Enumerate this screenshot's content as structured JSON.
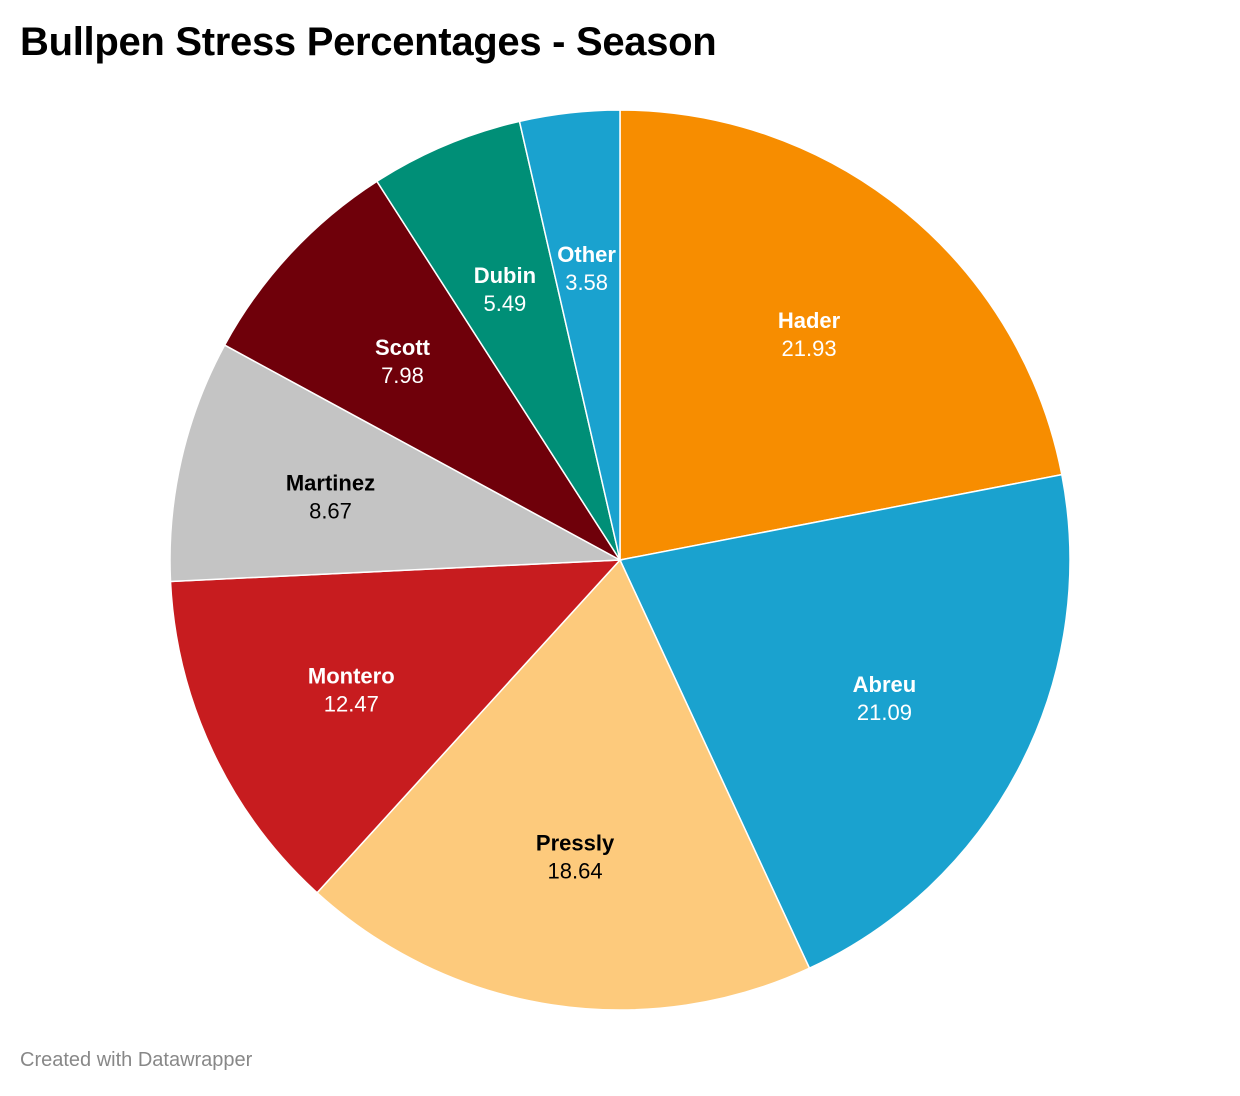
{
  "header": {
    "title": "Bullpen Stress Percentages - Season"
  },
  "footer": {
    "credit": "Created with Datawrapper"
  },
  "chart_data": {
    "type": "pie",
    "title": "Bullpen Stress Percentages - Season",
    "start": "12 o'clock, clockwise",
    "slices": [
      {
        "label": "Hader",
        "value": 21.93,
        "color": "#F78D00",
        "text_color": "#FFFFFF"
      },
      {
        "label": "Abreu",
        "value": 21.09,
        "color": "#1AA2CF",
        "text_color": "#FFFFFF"
      },
      {
        "label": "Pressly",
        "value": 18.64,
        "color": "#FDCA7C",
        "text_color": "#000000"
      },
      {
        "label": "Montero",
        "value": 12.47,
        "color": "#C71C1F",
        "text_color": "#FFFFFF"
      },
      {
        "label": "Martinez",
        "value": 8.67,
        "color": "#C4C4C4",
        "text_color": "#000000"
      },
      {
        "label": "Scott",
        "value": 7.98,
        "color": "#6F000A",
        "text_color": "#FFFFFF"
      },
      {
        "label": "Dubin",
        "value": 5.49,
        "color": "#008F77",
        "text_color": "#FFFFFF"
      },
      {
        "label": "Other",
        "value": 3.58,
        "color": "#1AA2CF",
        "text_color": "#FFFFFF"
      }
    ]
  }
}
